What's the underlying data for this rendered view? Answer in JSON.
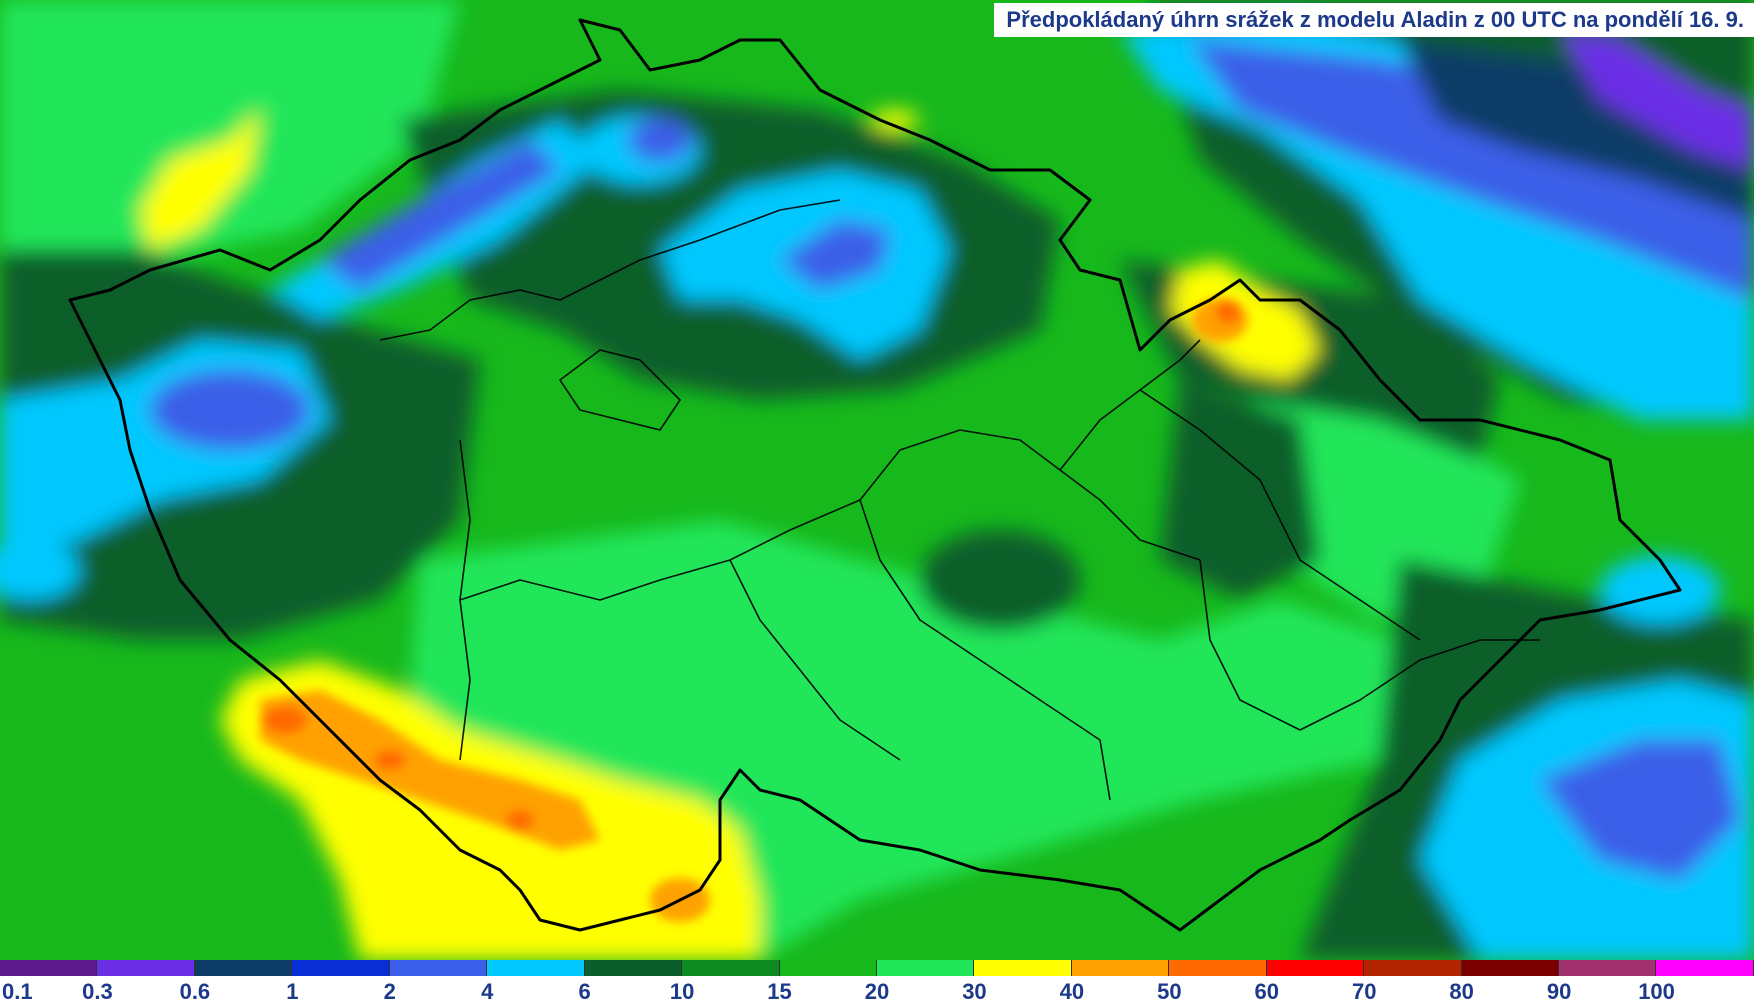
{
  "title": "Předpokládaný úhrn srážek z modelu Aladin z 00 UTC na pondělí 16. 9.",
  "legend": {
    "colors": [
      "#5a1a8c",
      "#6a2ee6",
      "#0d3d66",
      "#0a2ed6",
      "#3b5fe8",
      "#00c8ff",
      "#0a5e2a",
      "#0f8a22",
      "#17b81c",
      "#22e65a",
      "#ffff00",
      "#ffa100",
      "#ff6a00",
      "#ff0000",
      "#b22400",
      "#7a0000",
      "#a0306e",
      "#ff00ff"
    ],
    "labels": [
      "0.1",
      "0.3",
      "0.6",
      "1",
      "2",
      "4",
      "6",
      "10",
      "15",
      "20",
      "30",
      "40",
      "50",
      "60",
      "70",
      "80",
      "90",
      "100"
    ]
  }
}
